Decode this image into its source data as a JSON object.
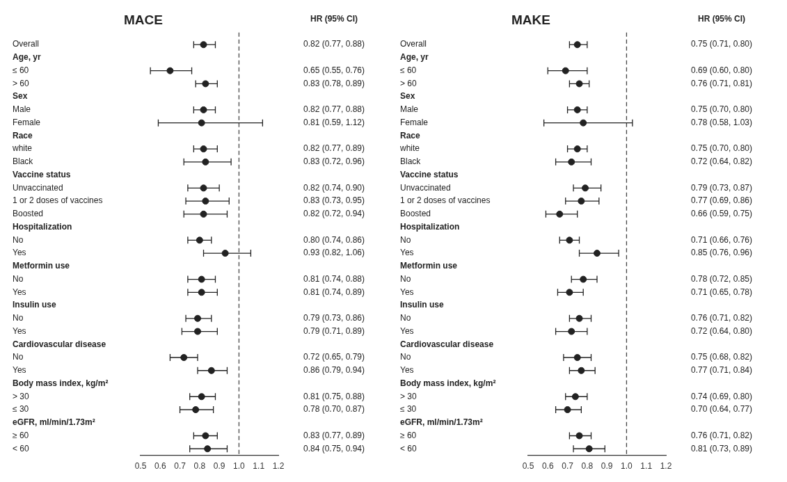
{
  "chart_data": [
    {
      "type": "scatter",
      "title": "MACE",
      "orientation": "horizontal",
      "annotations": [
        "HR (95% CI)"
      ],
      "categories": [
        "Overall",
        "Age, yr",
        "≤ 60",
        "> 60",
        "Sex",
        "Male",
        "Female",
        "Race",
        "white",
        "Black",
        "Vaccine status",
        "Unvaccinated",
        "1 or 2 doses of vaccines",
        "Boosted",
        "Hospitalization",
        "No",
        "Yes",
        "Metformin use",
        "No",
        "Yes",
        "Insulin use",
        "No",
        "Yes",
        "Cardiovascular disease",
        "No",
        "Yes",
        "Body mass index, kg/m²",
        "> 30",
        "≤ 30",
        "eGFR, ml/min/1.73m²",
        "≥ 60",
        "< 60"
      ],
      "series": [
        {
          "color": "#222222",
          "values": [
            0.82,
            null,
            0.65,
            0.83,
            null,
            0.82,
            0.81,
            null,
            0.82,
            0.83,
            null,
            0.82,
            0.83,
            0.82,
            null,
            0.8,
            0.93,
            null,
            0.81,
            0.81,
            null,
            0.79,
            0.79,
            null,
            0.72,
            0.86,
            null,
            0.81,
            0.78,
            null,
            0.83,
            0.84
          ],
          "errors": [
            [
              0.77,
              0.88
            ],
            null,
            [
              0.55,
              0.76
            ],
            [
              0.78,
              0.89
            ],
            null,
            [
              0.77,
              0.88
            ],
            [
              0.59,
              1.12
            ],
            null,
            [
              0.77,
              0.89
            ],
            [
              0.72,
              0.96
            ],
            null,
            [
              0.74,
              0.9
            ],
            [
              0.73,
              0.95
            ],
            [
              0.72,
              0.94
            ],
            null,
            [
              0.74,
              0.86
            ],
            [
              0.82,
              1.06
            ],
            null,
            [
              0.74,
              0.88
            ],
            [
              0.74,
              0.89
            ],
            null,
            [
              0.73,
              0.86
            ],
            [
              0.71,
              0.89
            ],
            null,
            [
              0.65,
              0.79
            ],
            [
              0.79,
              0.94
            ],
            null,
            [
              0.75,
              0.88
            ],
            [
              0.7,
              0.87
            ],
            null,
            [
              0.77,
              0.89
            ],
            [
              0.75,
              0.94
            ]
          ],
          "value_labels": [
            "0.82 (0.77, 0.88)",
            null,
            "0.65 (0.55, 0.76)",
            "0.83 (0.78, 0.89)",
            null,
            "0.82 (0.77, 0.88)",
            "0.81 (0.59, 1.12)",
            null,
            "0.82 (0.77, 0.89)",
            "0.83 (0.72, 0.96)",
            null,
            "0.82 (0.74, 0.90)",
            "0.83 (0.73, 0.95)",
            "0.82 (0.72, 0.94)",
            null,
            "0.80 (0.74, 0.86)",
            "0.93 (0.82, 1.06)",
            null,
            "0.81 (0.74, 0.88)",
            "0.81 (0.74, 0.89)",
            null,
            "0.79 (0.73, 0.86)",
            "0.79 (0.71, 0.89)",
            null,
            "0.72 (0.65, 0.79)",
            "0.86 (0.79, 0.94)",
            null,
            "0.81 (0.75, 0.88)",
            "0.78 (0.70, 0.87)",
            null,
            "0.83 (0.77, 0.89)",
            "0.84 (0.75, 0.94)"
          ]
        }
      ],
      "xlim": [
        0.5,
        1.2
      ],
      "xticks": [
        0.5,
        0.6,
        0.7,
        0.8,
        0.9,
        {
          "value": 1,
          "label": "1.0"
        },
        1.1,
        1.2
      ],
      "ref_lines": [
        {
          "axis": "x",
          "value": 1,
          "line_style": "dashed"
        }
      ],
      "marker": "circle",
      "grid": false,
      "legend": false
    },
    {
      "type": "scatter",
      "title": "MAKE",
      "orientation": "horizontal",
      "annotations": [
        "HR (95% CI)"
      ],
      "categories": [
        "Overall",
        "Age, yr",
        "≤ 60",
        "> 60",
        "Sex",
        "Male",
        "Female",
        "Race",
        "white",
        "Black",
        "Vaccine status",
        "Unvaccinated",
        "1 or 2 doses of vaccines",
        "Boosted",
        "Hospitalization",
        "No",
        "Yes",
        "Metformin use",
        "No",
        "Yes",
        "Insulin use",
        "No",
        "Yes",
        "Cardiovascular disease",
        "No",
        "Yes",
        "Body mass index, kg/m²",
        "> 30",
        "≤ 30",
        "eGFR, ml/min/1.73m²",
        "≥ 60",
        "< 60"
      ],
      "series": [
        {
          "color": "#222222",
          "values": [
            0.75,
            null,
            0.69,
            0.76,
            null,
            0.75,
            0.78,
            null,
            0.75,
            0.72,
            null,
            0.79,
            0.77,
            0.66,
            null,
            0.71,
            0.85,
            null,
            0.78,
            0.71,
            null,
            0.76,
            0.72,
            null,
            0.75,
            0.77,
            null,
            0.74,
            0.7,
            null,
            0.76,
            0.81
          ],
          "errors": [
            [
              0.71,
              0.8
            ],
            null,
            [
              0.6,
              0.8
            ],
            [
              0.71,
              0.81
            ],
            null,
            [
              0.7,
              0.8
            ],
            [
              0.58,
              1.03
            ],
            null,
            [
              0.7,
              0.8
            ],
            [
              0.64,
              0.82
            ],
            null,
            [
              0.73,
              0.87
            ],
            [
              0.69,
              0.86
            ],
            [
              0.59,
              0.75
            ],
            null,
            [
              0.66,
              0.76
            ],
            [
              0.76,
              0.96
            ],
            null,
            [
              0.72,
              0.85
            ],
            [
              0.65,
              0.78
            ],
            null,
            [
              0.71,
              0.82
            ],
            [
              0.64,
              0.8
            ],
            null,
            [
              0.68,
              0.82
            ],
            [
              0.71,
              0.84
            ],
            null,
            [
              0.69,
              0.8
            ],
            [
              0.64,
              0.77
            ],
            null,
            [
              0.71,
              0.82
            ],
            [
              0.73,
              0.89
            ]
          ],
          "value_labels": [
            "0.75 (0.71, 0.80)",
            null,
            "0.69 (0.60, 0.80)",
            "0.76 (0.71, 0.81)",
            null,
            "0.75 (0.70, 0.80)",
            "0.78 (0.58, 1.03)",
            null,
            "0.75 (0.70, 0.80)",
            "0.72 (0.64, 0.82)",
            null,
            "0.79 (0.73, 0.87)",
            "0.77 (0.69, 0.86)",
            "0.66 (0.59, 0.75)",
            null,
            "0.71 (0.66, 0.76)",
            "0.85 (0.76, 0.96)",
            null,
            "0.78 (0.72, 0.85)",
            "0.71 (0.65, 0.78)",
            null,
            "0.76 (0.71, 0.82)",
            "0.72 (0.64, 0.80)",
            null,
            "0.75 (0.68, 0.82)",
            "0.77 (0.71, 0.84)",
            null,
            "0.74 (0.69, 0.80)",
            "0.70 (0.64, 0.77)",
            null,
            "0.76 (0.71, 0.82)",
            "0.81 (0.73, 0.89)"
          ]
        }
      ],
      "xlim": [
        0.5,
        1.2
      ],
      "xticks": [
        0.5,
        0.6,
        0.7,
        0.8,
        0.9,
        {
          "value": 1,
          "label": "1.0"
        },
        1.1,
        1.2
      ],
      "ref_lines": [
        {
          "axis": "x",
          "value": 1,
          "line_style": "dashed"
        }
      ],
      "marker": "circle",
      "grid": false,
      "legend": false
    }
  ]
}
